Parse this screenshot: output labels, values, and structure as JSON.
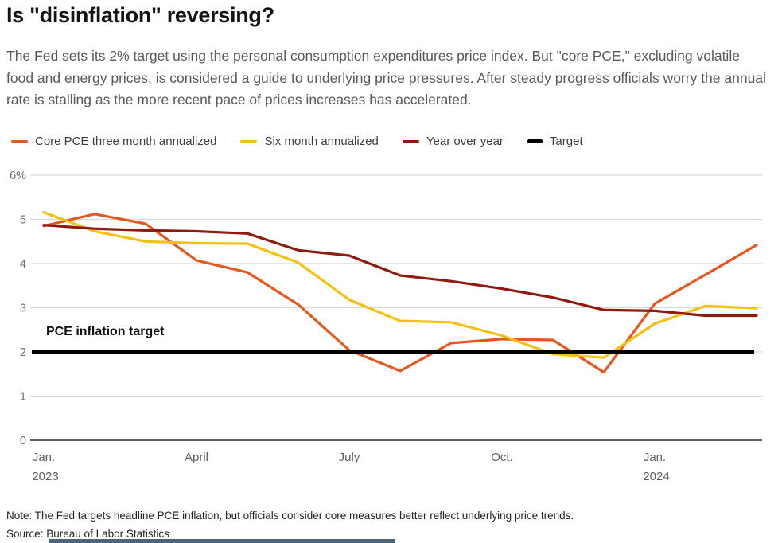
{
  "title": "Is \"disinflation\" reversing?",
  "subtitle": "The Fed sets its 2% target using the personal consumption expenditures price index. But \"core PCE,\" excluding volatile food and energy prices, is considered a guide to underlying price pressures. After steady progress officials worry the annual rate is stalling as the more recent pace of prices increases has accelerated.",
  "legend": [
    {
      "id": "core-pce-three-month",
      "label": "Core PCE three month annualized",
      "color": "#E4571E",
      "thick": false
    },
    {
      "id": "six-month",
      "label": "Six month annualized",
      "color": "#F3C211",
      "thick": false
    },
    {
      "id": "year-over-year",
      "label": "Year over year",
      "color": "#8E1A10",
      "thick": false
    },
    {
      "id": "target",
      "label": "Target",
      "color": "#000000",
      "thick": true
    }
  ],
  "chart_data": {
    "type": "line",
    "x": [
      "Jan 2023",
      "Feb 2023",
      "Mar 2023",
      "Apr 2023",
      "May 2023",
      "Jun 2023",
      "Jul 2023",
      "Aug 2023",
      "Sep 2023",
      "Oct 2023",
      "Nov 2023",
      "Dec 2023",
      "Jan 2024",
      "Feb 2024",
      "Mar 2024"
    ],
    "series": [
      {
        "id": "core-pce-three-month",
        "name": "Core PCE three month annualized",
        "color": "#E4571E",
        "values": [
          4.85,
          5.12,
          4.9,
          4.07,
          3.8,
          3.07,
          2.04,
          1.57,
          2.2,
          2.29,
          2.27,
          1.54,
          3.09,
          3.75,
          4.42
        ]
      },
      {
        "id": "six-month",
        "name": "Six month annualized",
        "color": "#F3C211",
        "values": [
          5.16,
          4.73,
          4.5,
          4.46,
          4.45,
          4.02,
          3.18,
          2.7,
          2.67,
          2.37,
          1.95,
          1.87,
          2.64,
          3.04,
          2.99
        ]
      },
      {
        "id": "year-over-year",
        "name": "Year over year",
        "color": "#8E1A10",
        "values": [
          4.87,
          4.79,
          4.75,
          4.73,
          4.68,
          4.3,
          4.18,
          3.73,
          3.6,
          3.43,
          3.23,
          2.95,
          2.93,
          2.82,
          2.82
        ]
      }
    ],
    "target_value": 2,
    "annotation": "PCE inflation target",
    "ylim": [
      0,
      6
    ],
    "yticks": [
      {
        "value": 6,
        "label": "6%"
      },
      {
        "value": 5,
        "label": "5"
      },
      {
        "value": 4,
        "label": "4"
      },
      {
        "value": 3,
        "label": "3"
      },
      {
        "value": 2,
        "label": "2"
      },
      {
        "value": 1,
        "label": "1"
      },
      {
        "value": 0,
        "label": "0"
      }
    ],
    "xticks": [
      {
        "index": 0,
        "label": "Jan.",
        "sub": "2023"
      },
      {
        "index": 3,
        "label": "April"
      },
      {
        "index": 6,
        "label": "July"
      },
      {
        "index": 9,
        "label": "Oct."
      },
      {
        "index": 12,
        "label": "Jan.",
        "sub": "2024"
      }
    ],
    "grid": true,
    "legend_position": "top"
  },
  "note": "Note: The Fed targets headline PCE inflation, but officials consider core measures better reflect underlying price trends.",
  "source": "Source: Bureau of Labor Statistics",
  "colors": {
    "accent_orange": "#E4571E",
    "accent_yellow": "#F3C211",
    "accent_darkred": "#8E1A10",
    "target_black": "#000000",
    "gridline": "#D9D9D9",
    "axis_line": "#2B2B2B",
    "footer_bar": "#4A657C"
  }
}
